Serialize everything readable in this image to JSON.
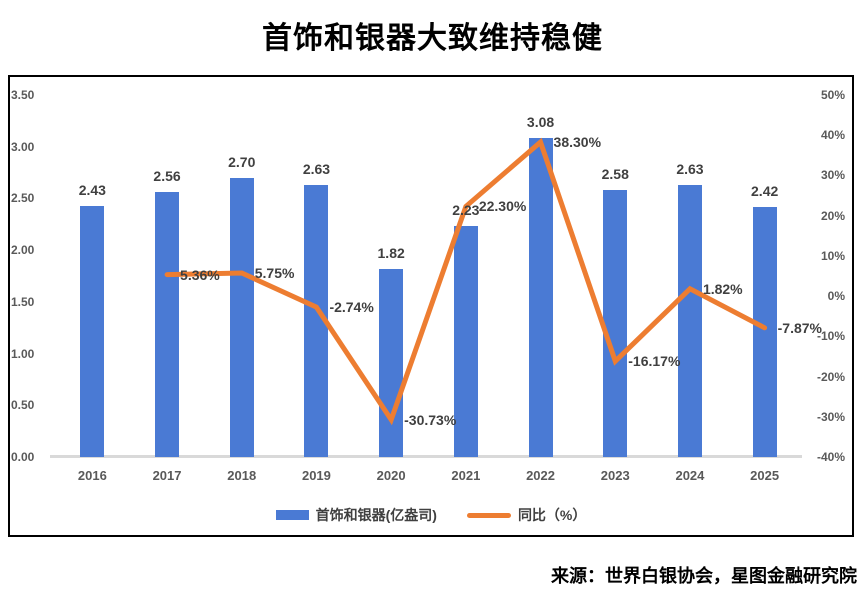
{
  "title": "首饰和银器大致维持稳健",
  "source": "来源：世界白银协会，星图金融研究院",
  "colors": {
    "bar": "#4A7AD4",
    "line": "#ED7D31",
    "axis_line": "#D9D9D9",
    "tick_text": "#595959",
    "label_text": "#404040"
  },
  "legend": [
    {
      "label": "首饰和银器(亿盎司)",
      "swatch": "bar"
    },
    {
      "label": "同比（%）",
      "swatch": "line"
    }
  ],
  "chart_data": {
    "type": "bar+line combo, dual axis",
    "categories": [
      "2016",
      "2017",
      "2018",
      "2019",
      "2020",
      "2021",
      "2022",
      "2023",
      "2024",
      "2025"
    ],
    "series": [
      {
        "name": "首饰和银器(亿盎司)",
        "type": "bar",
        "axis": "left",
        "values": [
          2.43,
          2.56,
          2.7,
          2.63,
          1.82,
          2.23,
          3.08,
          2.58,
          2.63,
          2.42
        ],
        "data_labels": [
          "2.43",
          "2.56",
          "2.70",
          "2.63",
          "1.82",
          "2.23",
          "3.08",
          "2.58",
          "2.63",
          "2.42"
        ]
      },
      {
        "name": "同比（%）",
        "type": "line",
        "axis": "right",
        "values": [
          null,
          5.36,
          5.75,
          -2.74,
          -30.73,
          22.3,
          38.3,
          -16.17,
          1.82,
          -7.87
        ],
        "data_labels": [
          null,
          "5.36%",
          "5.75%",
          "-2.74%",
          "-30.73%",
          "22.30%",
          "38.30%",
          "-16.17%",
          "1.82%",
          "-7.87%"
        ]
      }
    ],
    "left_axis": {
      "min": 0,
      "max": 3.5,
      "tick_labels": [
        "3.50",
        "3.00",
        "2.50",
        "2.00",
        "1.50",
        "1.00",
        "0.50",
        "0.00"
      ],
      "tick_values": [
        3.5,
        3.0,
        2.5,
        2.0,
        1.5,
        1.0,
        0.5,
        0.0
      ]
    },
    "right_axis": {
      "min": -40,
      "max": 50,
      "tick_labels": [
        "50%",
        "40%",
        "30%",
        "20%",
        "10%",
        "0%",
        "-10%",
        "-20%",
        "-30%",
        "-40%"
      ],
      "tick_values": [
        50,
        40,
        30,
        20,
        10,
        0,
        -10,
        -20,
        -30,
        -40
      ]
    },
    "grid": false,
    "legend_position": "bottom"
  }
}
